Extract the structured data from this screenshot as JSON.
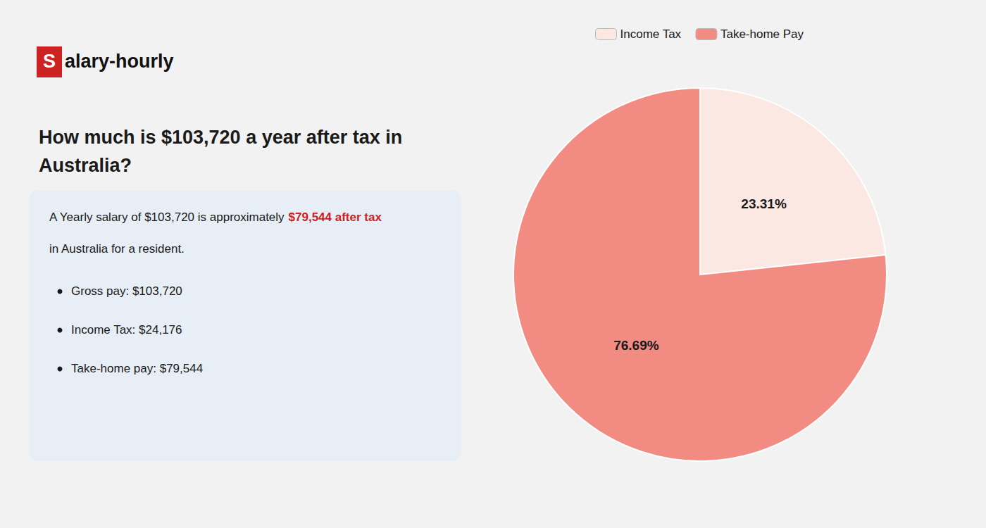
{
  "chart_data": {
    "type": "pie",
    "title": "How much is $103,720 a year after tax in\nAustralia?",
    "categories": [
      "Income Tax",
      "Take-home Pay"
    ],
    "values": [
      23.31,
      76.69
    ],
    "value_labels": [
      "23.31%",
      "76.69%"
    ],
    "colors": [
      "#fce8e2",
      "#f28b82"
    ],
    "data_labels": true,
    "legend": "top",
    "annotations": [
      {
        "text": "S",
        "color": "#cc2222"
      },
      {
        "text": "alary-hourly"
      },
      {
        "text": "A Yearly salary of $103,720 is approximately "
      },
      {
        "text": "$79,544 after tax",
        "color": "#cc2222"
      },
      {
        "text": "in Australia for a resident."
      },
      {
        "text": "Gross pay: $103,720"
      },
      {
        "text": "Income Tax: $24,176"
      },
      {
        "text": "Take-home pay: $79,544"
      }
    ]
  }
}
